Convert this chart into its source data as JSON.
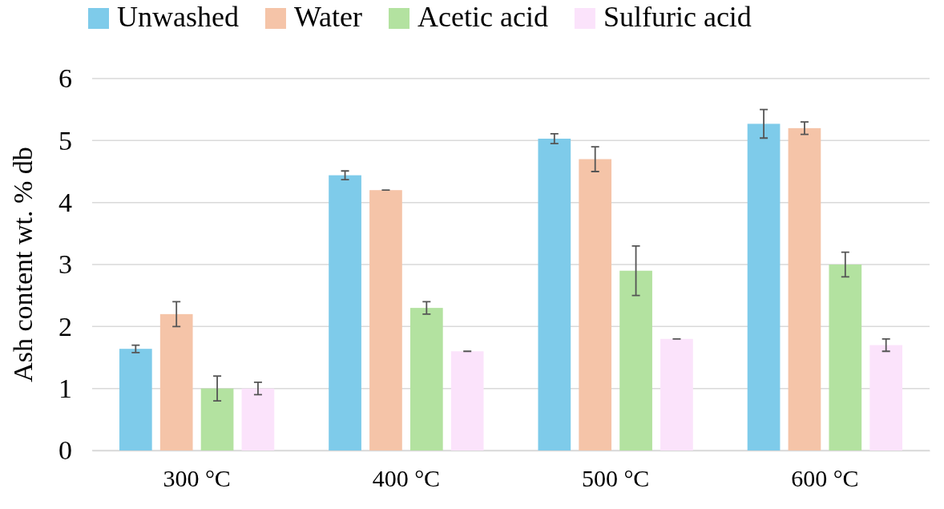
{
  "chart_data": {
    "type": "bar",
    "ylabel": "Ash content wt. % db",
    "categories": [
      "300 °C",
      "400 °C",
      "500 °C",
      "600 °C"
    ],
    "series": [
      {
        "name": "Unwashed",
        "color": "#7ecbea",
        "values": [
          1.64,
          4.44,
          5.03,
          5.27
        ],
        "errors": [
          0.06,
          0.07,
          0.08,
          0.23
        ]
      },
      {
        "name": "Water",
        "color": "#f5c4a8",
        "values": [
          2.2,
          4.2,
          4.7,
          5.2
        ],
        "errors": [
          0.2,
          0,
          0.2,
          0.1
        ]
      },
      {
        "name": "Acetic acid",
        "color": "#b3e2a0",
        "values": [
          1.0,
          2.3,
          2.9,
          3.0
        ],
        "errors": [
          0.2,
          0.1,
          0.4,
          0.2
        ]
      },
      {
        "name": "Sulfuric acid",
        "color": "#fbe3fb",
        "values": [
          1.0,
          1.6,
          1.8,
          1.7
        ],
        "errors": [
          0.1,
          0,
          0,
          0.1
        ]
      }
    ],
    "ylim": [
      0,
      6
    ],
    "yticks": [
      0,
      1,
      2,
      3,
      4,
      5,
      6
    ],
    "grid": "y",
    "legend": "top"
  }
}
